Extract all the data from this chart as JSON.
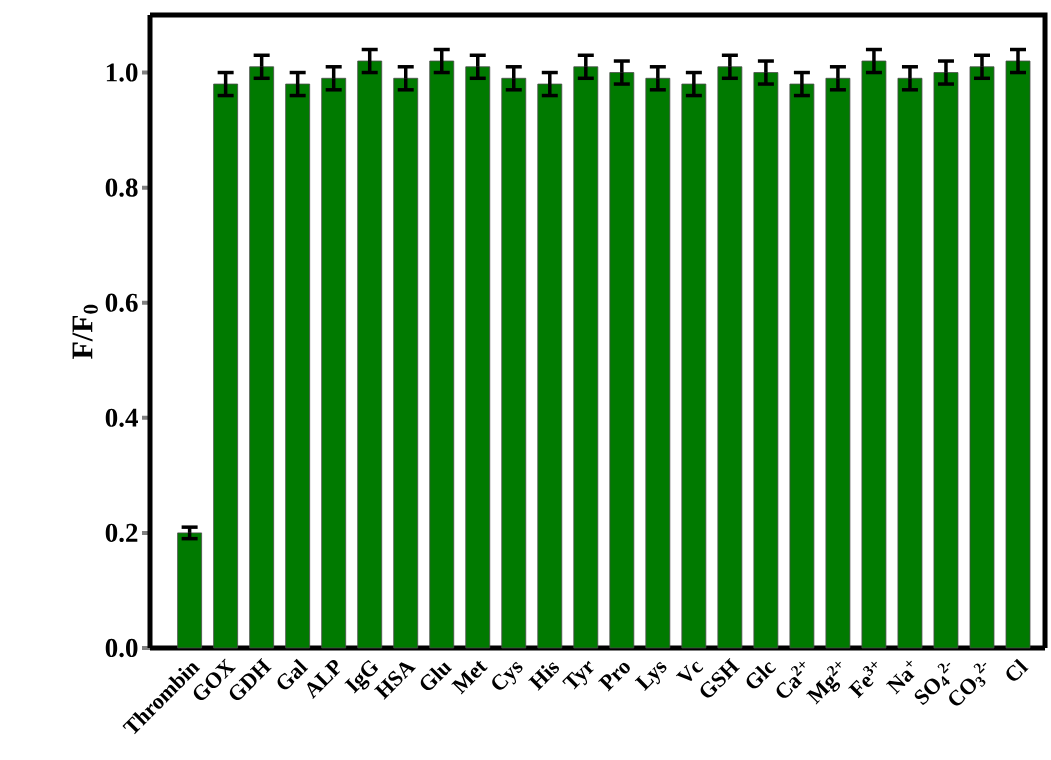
{
  "chart_data": {
    "type": "bar",
    "ylabel": "F/F$_{0}$",
    "categories": [
      "Thrombin",
      "GOX",
      "GDH",
      "Gal",
      "ALP",
      "IgG",
      "HSA",
      "Glu",
      "Met",
      "Cys",
      "His",
      "Tyr",
      "Pro",
      "Lys",
      "Vc",
      "GSH",
      "Glc",
      "Ca$^{2+}$",
      "Mg$^{2+}$",
      "Fe$^{3+}$",
      "Na$^{+}$",
      "SO$_{4}$$^{2-}$",
      "CO$_{3}$$^{2-}$",
      "Cl"
    ],
    "values": [
      0.2,
      0.98,
      1.01,
      0.98,
      0.99,
      1.02,
      0.99,
      1.02,
      1.01,
      0.99,
      0.98,
      1.01,
      1.0,
      0.99,
      0.98,
      1.01,
      1.0,
      0.98,
      0.99,
      1.02,
      0.99,
      1.0,
      1.01,
      1.02
    ],
    "errors": [
      0.01,
      0.02,
      0.02,
      0.02,
      0.02,
      0.02,
      0.02,
      0.02,
      0.02,
      0.02,
      0.02,
      0.02,
      0.02,
      0.02,
      0.02,
      0.02,
      0.02,
      0.02,
      0.02,
      0.02,
      0.02,
      0.02,
      0.02,
      0.02
    ],
    "color": "#007a00",
    "ylim": [
      0.0,
      1.1
    ],
    "yticks": [
      {
        "value": 0.0,
        "label": "0.0"
      },
      {
        "value": 0.2,
        "label": "0.2"
      },
      {
        "value": 0.4,
        "label": "0.4"
      },
      {
        "value": 0.6,
        "label": "0.6"
      },
      {
        "value": 0.8,
        "label": "0.8"
      },
      {
        "value": 1.0,
        "label": "1.0"
      }
    ],
    "grid": false
  }
}
